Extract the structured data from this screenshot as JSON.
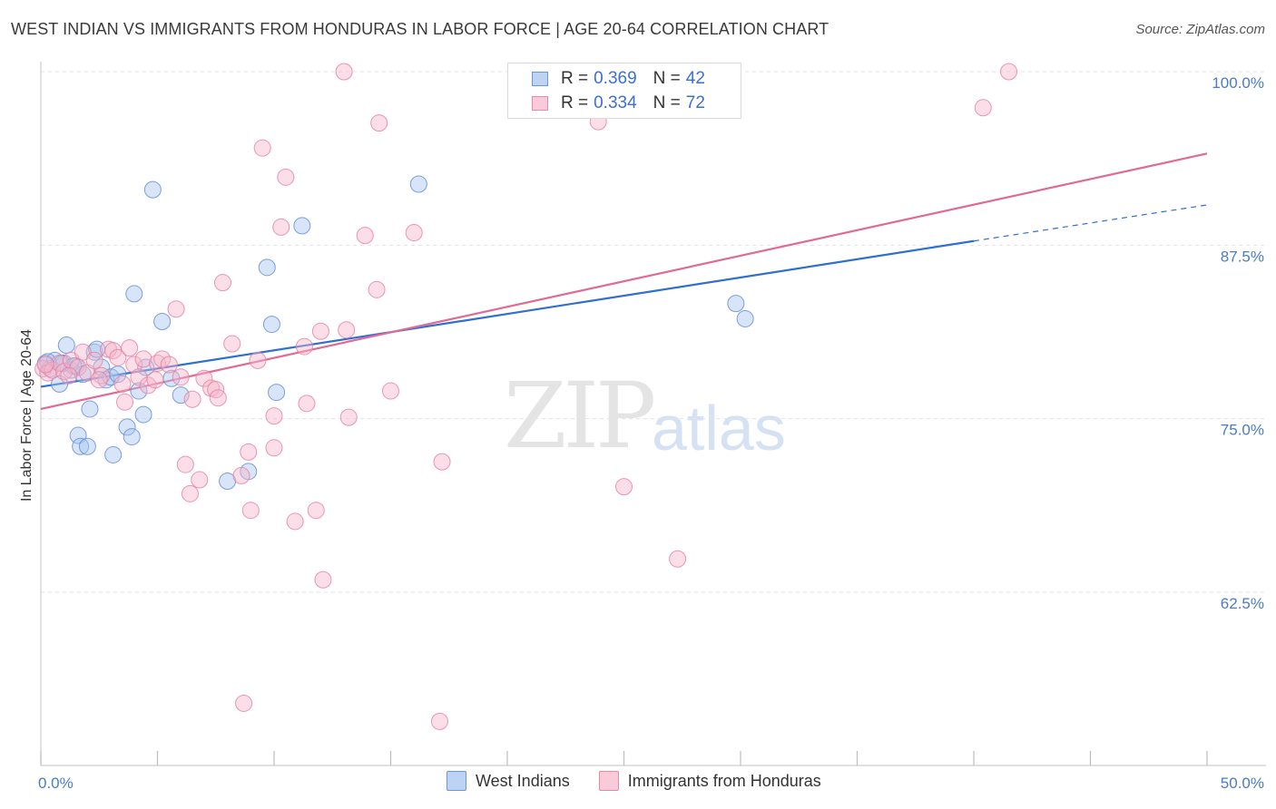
{
  "title": "WEST INDIAN VS IMMIGRANTS FROM HONDURAS IN LABOR FORCE | AGE 20-64 CORRELATION CHART",
  "source": "Source: ZipAtlas.com",
  "watermark": {
    "zip": "ZIP",
    "atlas": "atlas"
  },
  "legend": {
    "rows": [
      {
        "r_label": "R =",
        "r_value": "0.369",
        "n_label": "N =",
        "n_value": "42",
        "color": "#a9c6f0"
      },
      {
        "r_label": "R =",
        "r_value": "0.334",
        "n_label": "N =",
        "n_value": "72",
        "color": "#f6b6c9"
      }
    ]
  },
  "bottom_legend": [
    {
      "label": "West Indians",
      "color": "#a9c6f0"
    },
    {
      "label": "Immigrants from Honduras",
      "color": "#f6b6c9"
    }
  ],
  "chart_data": {
    "type": "scatter",
    "ylabel": "In Labor Force | Age 20-64",
    "x_tick_labels": [
      "0.0%",
      "50.0%"
    ],
    "y_tick_labels": [
      "100.0%",
      "87.5%",
      "75.0%",
      "62.5%"
    ],
    "y_tick_values": [
      100.0,
      87.5,
      75.0,
      62.5
    ],
    "xlim": [
      0,
      50
    ],
    "ylim": [
      52,
      102
    ],
    "grid": true,
    "series": [
      {
        "name": "West Indians",
        "color": "#a9c6f0",
        "stroke": "#5d8ad6",
        "trend": {
          "x0": 0,
          "y0": 77.3,
          "x1": 40,
          "y1": 87.8,
          "dash_to_x": 50,
          "dash_to_y": 90.4,
          "color": "#2f6fd0"
        },
        "points": [
          [
            0.2,
            79.0
          ],
          [
            0.4,
            78.6
          ],
          [
            0.6,
            79.2
          ],
          [
            0.8,
            77.5
          ],
          [
            1.0,
            79.0
          ],
          [
            1.1,
            80.3
          ],
          [
            1.3,
            78.5
          ],
          [
            1.5,
            78.8
          ],
          [
            1.6,
            73.8
          ],
          [
            1.7,
            73.0
          ],
          [
            1.8,
            78.2
          ],
          [
            2.0,
            73.0
          ],
          [
            2.1,
            75.7
          ],
          [
            2.3,
            79.8
          ],
          [
            2.4,
            80.0
          ],
          [
            2.6,
            78.7
          ],
          [
            2.8,
            77.8
          ],
          [
            3.0,
            78.0
          ],
          [
            3.1,
            72.4
          ],
          [
            3.3,
            78.2
          ],
          [
            3.7,
            74.4
          ],
          [
            3.9,
            73.7
          ],
          [
            4.0,
            84.0
          ],
          [
            4.2,
            77.0
          ],
          [
            4.4,
            75.3
          ],
          [
            4.5,
            78.7
          ],
          [
            4.8,
            91.5
          ],
          [
            5.2,
            82.0
          ],
          [
            5.6,
            77.9
          ],
          [
            6.0,
            76.7
          ],
          [
            8.0,
            70.5
          ],
          [
            8.9,
            71.2
          ],
          [
            9.7,
            85.9
          ],
          [
            9.9,
            81.8
          ],
          [
            10.1,
            76.9
          ],
          [
            11.2,
            88.9
          ],
          [
            16.2,
            91.9
          ],
          [
            29.8,
            83.3
          ],
          [
            30.2,
            82.2
          ],
          [
            0.3,
            79.1
          ],
          [
            0.9,
            79.0
          ],
          [
            1.4,
            78.8
          ]
        ]
      },
      {
        "name": "Immigrants from Honduras",
        "color": "#f6b6c9",
        "stroke": "#e57ea0",
        "trend": {
          "x0": 0,
          "y0": 75.7,
          "x1": 50,
          "y1": 94.1,
          "color": "#e06a94"
        },
        "points": [
          [
            0.1,
            78.6
          ],
          [
            0.3,
            78.3
          ],
          [
            0.5,
            78.5
          ],
          [
            0.8,
            79.0
          ],
          [
            1.0,
            78.4
          ],
          [
            1.3,
            79.2
          ],
          [
            1.6,
            78.7
          ],
          [
            1.8,
            79.8
          ],
          [
            2.0,
            78.3
          ],
          [
            2.3,
            79.2
          ],
          [
            2.6,
            78.1
          ],
          [
            2.9,
            80.0
          ],
          [
            3.1,
            79.9
          ],
          [
            3.3,
            79.4
          ],
          [
            3.5,
            77.5
          ],
          [
            3.6,
            76.2
          ],
          [
            3.8,
            80.1
          ],
          [
            4.0,
            78.9
          ],
          [
            4.2,
            78.0
          ],
          [
            4.4,
            79.3
          ],
          [
            4.6,
            77.4
          ],
          [
            4.9,
            77.8
          ],
          [
            5.0,
            79.0
          ],
          [
            5.2,
            79.3
          ],
          [
            5.5,
            78.9
          ],
          [
            5.8,
            82.9
          ],
          [
            6.0,
            78.0
          ],
          [
            6.2,
            71.7
          ],
          [
            6.4,
            69.6
          ],
          [
            6.5,
            76.4
          ],
          [
            6.8,
            70.6
          ],
          [
            7.0,
            77.9
          ],
          [
            7.3,
            77.2
          ],
          [
            7.5,
            77.1
          ],
          [
            7.6,
            76.5
          ],
          [
            7.8,
            84.8
          ],
          [
            8.2,
            80.4
          ],
          [
            8.6,
            70.9
          ],
          [
            8.7,
            54.5
          ],
          [
            8.9,
            72.6
          ],
          [
            9.0,
            68.4
          ],
          [
            9.3,
            79.2
          ],
          [
            9.5,
            94.5
          ],
          [
            10.0,
            75.2
          ],
          [
            10.0,
            72.9
          ],
          [
            10.3,
            88.8
          ],
          [
            10.5,
            92.4
          ],
          [
            10.9,
            67.6
          ],
          [
            11.3,
            80.2
          ],
          [
            11.4,
            76.1
          ],
          [
            11.8,
            68.4
          ],
          [
            12.0,
            81.3
          ],
          [
            12.1,
            63.4
          ],
          [
            13.0,
            100.0
          ],
          [
            13.1,
            81.4
          ],
          [
            13.2,
            75.1
          ],
          [
            13.9,
            88.2
          ],
          [
            14.4,
            84.3
          ],
          [
            14.5,
            96.3
          ],
          [
            15.0,
            77.0
          ],
          [
            16.0,
            88.4
          ],
          [
            17.1,
            53.2
          ],
          [
            17.2,
            71.9
          ],
          [
            23.9,
            96.4
          ],
          [
            25.0,
            100.0
          ],
          [
            25.0,
            70.1
          ],
          [
            27.3,
            64.9
          ],
          [
            40.4,
            97.4
          ],
          [
            41.5,
            100.0
          ],
          [
            0.2,
            78.9
          ],
          [
            1.2,
            78.1
          ],
          [
            2.5,
            77.8
          ]
        ]
      }
    ]
  }
}
